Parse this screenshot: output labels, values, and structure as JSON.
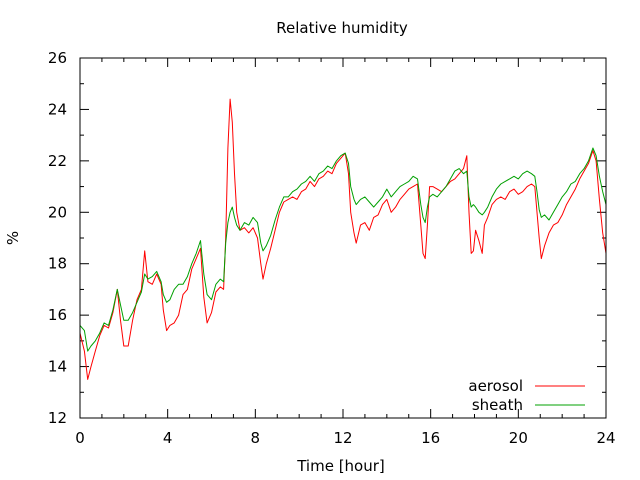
{
  "chart_data": {
    "type": "line",
    "title": "Relative humidity",
    "xlabel": "Time [hour]",
    "ylabel": "%",
    "xlim": [
      0,
      24
    ],
    "ylim": [
      12,
      26
    ],
    "xticks": [
      0,
      4,
      8,
      12,
      16,
      20,
      24
    ],
    "yticks": [
      12,
      14,
      16,
      18,
      20,
      22,
      24,
      26
    ],
    "grid": false,
    "legend_position": "bottom-right",
    "series": [
      {
        "name": "aerosol",
        "color": "#ff0000",
        "points": [
          [
            0.0,
            15.3
          ],
          [
            0.2,
            14.6
          ],
          [
            0.35,
            13.5
          ],
          [
            0.5,
            14.0
          ],
          [
            0.7,
            14.6
          ],
          [
            0.9,
            15.2
          ],
          [
            1.1,
            15.6
          ],
          [
            1.3,
            15.5
          ],
          [
            1.5,
            16.1
          ],
          [
            1.7,
            17.0
          ],
          [
            1.85,
            15.8
          ],
          [
            2.0,
            14.8
          ],
          [
            2.2,
            14.8
          ],
          [
            2.4,
            15.8
          ],
          [
            2.6,
            16.6
          ],
          [
            2.8,
            17.0
          ],
          [
            2.95,
            18.5
          ],
          [
            3.1,
            17.3
          ],
          [
            3.3,
            17.2
          ],
          [
            3.5,
            17.6
          ],
          [
            3.7,
            17.2
          ],
          [
            3.8,
            16.2
          ],
          [
            3.95,
            15.4
          ],
          [
            4.1,
            15.6
          ],
          [
            4.3,
            15.7
          ],
          [
            4.5,
            16.0
          ],
          [
            4.7,
            16.8
          ],
          [
            4.9,
            17.0
          ],
          [
            5.1,
            17.8
          ],
          [
            5.3,
            18.2
          ],
          [
            5.5,
            18.6
          ],
          [
            5.65,
            16.7
          ],
          [
            5.8,
            15.7
          ],
          [
            6.0,
            16.1
          ],
          [
            6.2,
            16.9
          ],
          [
            6.4,
            17.1
          ],
          [
            6.55,
            17.0
          ],
          [
            6.65,
            19.0
          ],
          [
            6.75,
            22.5
          ],
          [
            6.85,
            24.4
          ],
          [
            6.95,
            23.5
          ],
          [
            7.05,
            21.5
          ],
          [
            7.15,
            20.0
          ],
          [
            7.3,
            19.3
          ],
          [
            7.5,
            19.4
          ],
          [
            7.7,
            19.2
          ],
          [
            7.9,
            19.4
          ],
          [
            8.1,
            19.0
          ],
          [
            8.25,
            18.0
          ],
          [
            8.35,
            17.4
          ],
          [
            8.5,
            18.0
          ],
          [
            8.7,
            18.6
          ],
          [
            8.9,
            19.3
          ],
          [
            9.1,
            20.0
          ],
          [
            9.3,
            20.4
          ],
          [
            9.5,
            20.5
          ],
          [
            9.7,
            20.6
          ],
          [
            9.9,
            20.5
          ],
          [
            10.1,
            20.8
          ],
          [
            10.3,
            20.9
          ],
          [
            10.5,
            21.2
          ],
          [
            10.7,
            21.0
          ],
          [
            10.9,
            21.3
          ],
          [
            11.1,
            21.4
          ],
          [
            11.3,
            21.6
          ],
          [
            11.5,
            21.5
          ],
          [
            11.7,
            21.9
          ],
          [
            11.9,
            22.1
          ],
          [
            12.1,
            22.3
          ],
          [
            12.25,
            21.5
          ],
          [
            12.35,
            20.0
          ],
          [
            12.5,
            19.2
          ],
          [
            12.6,
            18.8
          ],
          [
            12.8,
            19.5
          ],
          [
            13.0,
            19.6
          ],
          [
            13.2,
            19.3
          ],
          [
            13.4,
            19.8
          ],
          [
            13.6,
            19.9
          ],
          [
            13.8,
            20.3
          ],
          [
            14.0,
            20.5
          ],
          [
            14.2,
            20.0
          ],
          [
            14.4,
            20.2
          ],
          [
            14.6,
            20.5
          ],
          [
            14.8,
            20.7
          ],
          [
            15.0,
            20.9
          ],
          [
            15.2,
            21.0
          ],
          [
            15.4,
            21.1
          ],
          [
            15.55,
            19.5
          ],
          [
            15.65,
            18.4
          ],
          [
            15.75,
            18.2
          ],
          [
            15.85,
            19.5
          ],
          [
            15.95,
            21.0
          ],
          [
            16.1,
            21.0
          ],
          [
            16.3,
            20.9
          ],
          [
            16.5,
            20.8
          ],
          [
            16.7,
            21.0
          ],
          [
            16.9,
            21.2
          ],
          [
            17.1,
            21.3
          ],
          [
            17.3,
            21.5
          ],
          [
            17.5,
            21.7
          ],
          [
            17.65,
            22.2
          ],
          [
            17.75,
            20.0
          ],
          [
            17.85,
            18.4
          ],
          [
            17.95,
            18.5
          ],
          [
            18.05,
            19.3
          ],
          [
            18.2,
            18.9
          ],
          [
            18.35,
            18.4
          ],
          [
            18.45,
            19.5
          ],
          [
            18.6,
            19.8
          ],
          [
            18.8,
            20.3
          ],
          [
            19.0,
            20.5
          ],
          [
            19.2,
            20.6
          ],
          [
            19.4,
            20.5
          ],
          [
            19.6,
            20.8
          ],
          [
            19.8,
            20.9
          ],
          [
            20.0,
            20.7
          ],
          [
            20.2,
            20.8
          ],
          [
            20.4,
            21.0
          ],
          [
            20.6,
            21.1
          ],
          [
            20.75,
            21.0
          ],
          [
            20.85,
            20.0
          ],
          [
            20.95,
            19.0
          ],
          [
            21.05,
            18.2
          ],
          [
            21.2,
            18.7
          ],
          [
            21.4,
            19.2
          ],
          [
            21.6,
            19.5
          ],
          [
            21.8,
            19.6
          ],
          [
            22.0,
            19.9
          ],
          [
            22.2,
            20.3
          ],
          [
            22.4,
            20.6
          ],
          [
            22.6,
            20.9
          ],
          [
            22.8,
            21.3
          ],
          [
            23.0,
            21.6
          ],
          [
            23.2,
            21.9
          ],
          [
            23.4,
            22.4
          ],
          [
            23.55,
            22.0
          ],
          [
            23.7,
            20.5
          ],
          [
            23.85,
            19.2
          ],
          [
            24.0,
            18.4
          ]
        ]
      },
      {
        "name": "sheath",
        "color": "#00a000",
        "points": [
          [
            0.0,
            15.6
          ],
          [
            0.2,
            15.4
          ],
          [
            0.35,
            14.6
          ],
          [
            0.5,
            14.8
          ],
          [
            0.7,
            15.0
          ],
          [
            0.9,
            15.3
          ],
          [
            1.1,
            15.7
          ],
          [
            1.3,
            15.6
          ],
          [
            1.5,
            16.2
          ],
          [
            1.7,
            17.0
          ],
          [
            1.85,
            16.4
          ],
          [
            2.0,
            15.8
          ],
          [
            2.2,
            15.8
          ],
          [
            2.4,
            16.1
          ],
          [
            2.6,
            16.5
          ],
          [
            2.8,
            16.9
          ],
          [
            2.95,
            17.6
          ],
          [
            3.1,
            17.4
          ],
          [
            3.3,
            17.5
          ],
          [
            3.5,
            17.7
          ],
          [
            3.7,
            17.3
          ],
          [
            3.8,
            16.8
          ],
          [
            3.95,
            16.5
          ],
          [
            4.1,
            16.6
          ],
          [
            4.3,
            17.0
          ],
          [
            4.5,
            17.2
          ],
          [
            4.7,
            17.2
          ],
          [
            4.9,
            17.5
          ],
          [
            5.1,
            18.0
          ],
          [
            5.3,
            18.4
          ],
          [
            5.5,
            18.9
          ],
          [
            5.65,
            17.6
          ],
          [
            5.8,
            16.8
          ],
          [
            6.0,
            16.6
          ],
          [
            6.2,
            17.2
          ],
          [
            6.4,
            17.4
          ],
          [
            6.55,
            17.3
          ],
          [
            6.65,
            18.8
          ],
          [
            6.75,
            19.6
          ],
          [
            6.85,
            20.0
          ],
          [
            6.95,
            20.2
          ],
          [
            7.05,
            19.8
          ],
          [
            7.15,
            19.5
          ],
          [
            7.3,
            19.3
          ],
          [
            7.5,
            19.6
          ],
          [
            7.7,
            19.5
          ],
          [
            7.9,
            19.8
          ],
          [
            8.1,
            19.6
          ],
          [
            8.25,
            18.8
          ],
          [
            8.35,
            18.5
          ],
          [
            8.5,
            18.7
          ],
          [
            8.7,
            19.1
          ],
          [
            8.9,
            19.7
          ],
          [
            9.1,
            20.2
          ],
          [
            9.3,
            20.6
          ],
          [
            9.5,
            20.6
          ],
          [
            9.7,
            20.8
          ],
          [
            9.9,
            20.9
          ],
          [
            10.1,
            21.1
          ],
          [
            10.3,
            21.2
          ],
          [
            10.5,
            21.4
          ],
          [
            10.7,
            21.2
          ],
          [
            10.9,
            21.5
          ],
          [
            11.1,
            21.6
          ],
          [
            11.3,
            21.8
          ],
          [
            11.5,
            21.7
          ],
          [
            11.7,
            22.0
          ],
          [
            11.9,
            22.2
          ],
          [
            12.1,
            22.3
          ],
          [
            12.25,
            21.9
          ],
          [
            12.35,
            21.0
          ],
          [
            12.5,
            20.5
          ],
          [
            12.6,
            20.3
          ],
          [
            12.8,
            20.5
          ],
          [
            13.0,
            20.6
          ],
          [
            13.2,
            20.4
          ],
          [
            13.4,
            20.2
          ],
          [
            13.6,
            20.4
          ],
          [
            13.8,
            20.6
          ],
          [
            14.0,
            20.9
          ],
          [
            14.2,
            20.6
          ],
          [
            14.4,
            20.8
          ],
          [
            14.6,
            21.0
          ],
          [
            14.8,
            21.1
          ],
          [
            15.0,
            21.2
          ],
          [
            15.2,
            21.4
          ],
          [
            15.4,
            21.3
          ],
          [
            15.55,
            20.3
          ],
          [
            15.65,
            19.8
          ],
          [
            15.75,
            19.6
          ],
          [
            15.85,
            20.2
          ],
          [
            15.95,
            20.6
          ],
          [
            16.1,
            20.7
          ],
          [
            16.3,
            20.6
          ],
          [
            16.5,
            20.8
          ],
          [
            16.7,
            21.0
          ],
          [
            16.9,
            21.3
          ],
          [
            17.1,
            21.6
          ],
          [
            17.3,
            21.7
          ],
          [
            17.5,
            21.5
          ],
          [
            17.65,
            21.6
          ],
          [
            17.75,
            20.6
          ],
          [
            17.85,
            20.2
          ],
          [
            17.95,
            20.3
          ],
          [
            18.05,
            20.2
          ],
          [
            18.2,
            20.0
          ],
          [
            18.35,
            19.9
          ],
          [
            18.45,
            20.0
          ],
          [
            18.6,
            20.2
          ],
          [
            18.8,
            20.6
          ],
          [
            19.0,
            20.9
          ],
          [
            19.2,
            21.1
          ],
          [
            19.4,
            21.2
          ],
          [
            19.6,
            21.3
          ],
          [
            19.8,
            21.4
          ],
          [
            20.0,
            21.3
          ],
          [
            20.2,
            21.5
          ],
          [
            20.4,
            21.6
          ],
          [
            20.6,
            21.5
          ],
          [
            20.75,
            21.4
          ],
          [
            20.85,
            20.8
          ],
          [
            20.95,
            20.1
          ],
          [
            21.05,
            19.8
          ],
          [
            21.2,
            19.9
          ],
          [
            21.4,
            19.7
          ],
          [
            21.6,
            20.0
          ],
          [
            21.8,
            20.3
          ],
          [
            22.0,
            20.6
          ],
          [
            22.2,
            20.8
          ],
          [
            22.4,
            21.1
          ],
          [
            22.6,
            21.2
          ],
          [
            22.8,
            21.5
          ],
          [
            23.0,
            21.7
          ],
          [
            23.2,
            22.0
          ],
          [
            23.4,
            22.5
          ],
          [
            23.55,
            22.2
          ],
          [
            23.7,
            21.4
          ],
          [
            23.85,
            20.8
          ],
          [
            24.0,
            20.3
          ]
        ]
      }
    ]
  }
}
